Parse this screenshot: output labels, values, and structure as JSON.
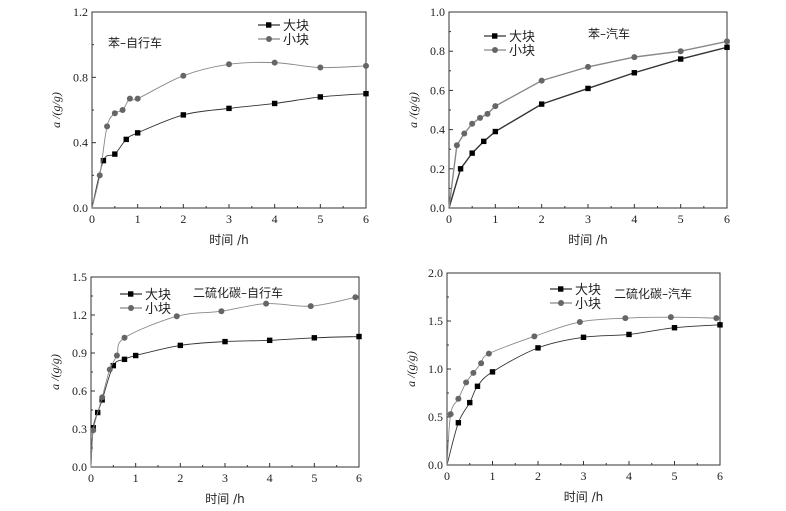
{
  "chart_data": [
    {
      "type": "line",
      "title": "苯–自行车",
      "xlabel": "时间 /h",
      "ylabel": "a /(g/g)",
      "xlim": [
        0,
        6
      ],
      "ylim": [
        0,
        1.2
      ],
      "xticks": [
        "0",
        "1",
        "2",
        "3",
        "4",
        "5",
        "6"
      ],
      "yticks": [
        "0.0",
        "0.4",
        "0.8",
        "1.2"
      ],
      "smooth": true,
      "legend_position": "top-right",
      "series": [
        {
          "name": "大块",
          "marker": "square",
          "color": "#000000",
          "x": [
            0,
            0.25,
            0.5,
            0.75,
            1,
            2,
            3,
            4,
            5,
            6
          ],
          "y": [
            0,
            0.29,
            0.33,
            0.42,
            0.46,
            0.57,
            0.61,
            0.64,
            0.68,
            0.7
          ]
        },
        {
          "name": "小块",
          "marker": "circle",
          "color": "#666666",
          "x": [
            0,
            0.17,
            0.33,
            0.5,
            0.67,
            0.83,
            1,
            2,
            3,
            4,
            5,
            6
          ],
          "y": [
            0,
            0.2,
            0.5,
            0.58,
            0.6,
            0.67,
            0.67,
            0.81,
            0.88,
            0.89,
            0.86,
            0.87
          ]
        }
      ]
    },
    {
      "type": "line",
      "title": "苯–汽车",
      "xlabel": "时间 /h",
      "ylabel": "a /(g/g)",
      "xlim": [
        0,
        6
      ],
      "ylim": [
        0,
        1.0
      ],
      "xticks": [
        "0",
        "1",
        "2",
        "3",
        "4",
        "5",
        "6"
      ],
      "yticks": [
        "0.0",
        "0.2",
        "0.4",
        "0.6",
        "0.8",
        "1.0"
      ],
      "smooth": false,
      "legend_position": "top-left",
      "series": [
        {
          "name": "大块",
          "marker": "square",
          "color": "#000000",
          "x": [
            0,
            0.25,
            0.5,
            0.75,
            1,
            2,
            3,
            4,
            5,
            6
          ],
          "y": [
            0,
            0.2,
            0.28,
            0.34,
            0.39,
            0.53,
            0.61,
            0.69,
            0.76,
            0.82
          ]
        },
        {
          "name": "小块",
          "marker": "circle",
          "color": "#666666",
          "x": [
            0,
            0.17,
            0.33,
            0.5,
            0.67,
            0.83,
            1,
            2,
            3,
            4,
            5,
            6
          ],
          "y": [
            0,
            0.32,
            0.38,
            0.43,
            0.46,
            0.48,
            0.52,
            0.65,
            0.72,
            0.77,
            0.8,
            0.85
          ]
        }
      ]
    },
    {
      "type": "line",
      "title": "二硫化碳–自行车",
      "xlabel": "时间 /h",
      "ylabel": "a /(g/g)",
      "xlim": [
        0,
        6
      ],
      "ylim": [
        0,
        1.5
      ],
      "xticks": [
        "0",
        "1",
        "2",
        "3",
        "4",
        "5",
        "6"
      ],
      "yticks": [
        "0.0",
        "0.3",
        "0.6",
        "0.9",
        "1.2",
        "1.5"
      ],
      "smooth": true,
      "legend_position": "top-left",
      "series": [
        {
          "name": "大块",
          "marker": "square",
          "color": "#000000",
          "x": [
            0,
            0.05,
            0.15,
            0.25,
            0.5,
            0.75,
            1,
            2,
            3,
            4,
            5,
            6
          ],
          "y": [
            0,
            0.31,
            0.43,
            0.53,
            0.8,
            0.85,
            0.88,
            0.96,
            0.99,
            1.0,
            1.02,
            1.03
          ]
        },
        {
          "name": "小块",
          "marker": "circle",
          "color": "#666666",
          "x": [
            0,
            0.05,
            0.25,
            0.42,
            0.58,
            0.75,
            1.92,
            2.92,
            3.92,
            4.92,
            5.92
          ],
          "y": [
            0,
            0.29,
            0.55,
            0.77,
            0.88,
            1.02,
            1.19,
            1.23,
            1.29,
            1.27,
            1.34
          ]
        }
      ]
    },
    {
      "type": "line",
      "title": "二硫化碳–汽车",
      "xlabel": "时间 /h",
      "ylabel": "a /(g/g)",
      "xlim": [
        0,
        6
      ],
      "ylim": [
        0,
        2.0
      ],
      "xticks": [
        "0",
        "1",
        "2",
        "3",
        "4",
        "5",
        "6"
      ],
      "yticks": [
        "0.0",
        "0.5",
        "1.0",
        "1.5",
        "2.0"
      ],
      "smooth": true,
      "legend_position": "top-center",
      "series": [
        {
          "name": "大块",
          "marker": "square",
          "color": "#000000",
          "x": [
            0,
            0.25,
            0.5,
            0.67,
            1,
            2,
            3,
            4,
            5,
            6
          ],
          "y": [
            0,
            0.44,
            0.65,
            0.82,
            0.97,
            1.22,
            1.33,
            1.36,
            1.43,
            1.46
          ]
        },
        {
          "name": "小块",
          "marker": "circle",
          "color": "#666666",
          "x": [
            0,
            0.08,
            0.25,
            0.42,
            0.58,
            0.75,
            0.92,
            1.92,
            2.92,
            3.92,
            4.92,
            5.92
          ],
          "y": [
            0,
            0.53,
            0.69,
            0.86,
            0.96,
            1.06,
            1.16,
            1.34,
            1.49,
            1.53,
            1.54,
            1.53
          ]
        }
      ]
    }
  ]
}
